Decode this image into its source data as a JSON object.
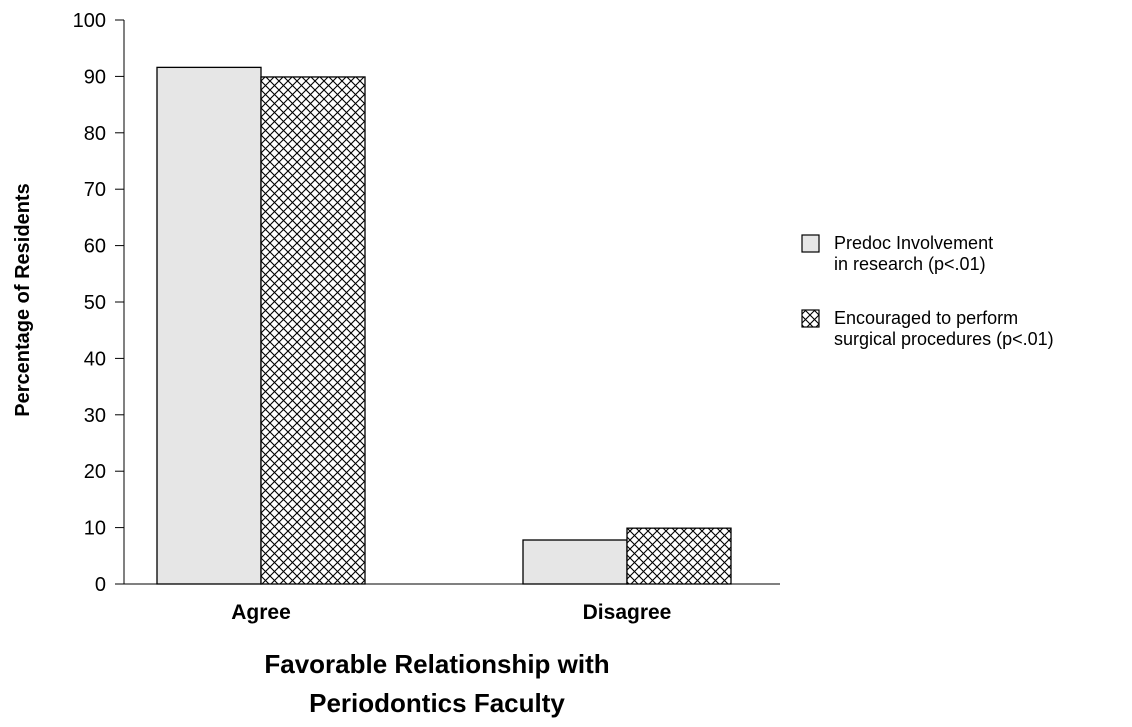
{
  "chart_data": {
    "type": "bar",
    "categories": [
      "Agree",
      "Disagree"
    ],
    "series": [
      {
        "name": "Predoc Involvement in research (p<.01)",
        "legend_lines": [
          "Predoc Involvement",
          "in research (p<.01)"
        ],
        "values": [
          91.6,
          7.8
        ],
        "fill": "#e6e6e6",
        "pattern": "solid"
      },
      {
        "name": "Encouraged to perform surgical procedures (p<.01)",
        "legend_lines": [
          "Encouraged to perform",
          "surgical procedures (p<.01)"
        ],
        "values": [
          89.9,
          9.9
        ],
        "fill": "#ffffff",
        "pattern": "crosshatch"
      }
    ],
    "ylim": [
      0,
      100
    ],
    "yticks": [
      0,
      10,
      20,
      30,
      40,
      50,
      60,
      70,
      80,
      90,
      100
    ],
    "ylabel": "Percentage of Residents",
    "xlabel_lines": [
      "Favorable Relationship with",
      "Periodontics Faculty"
    ],
    "grid": false,
    "legend_position": "right"
  }
}
